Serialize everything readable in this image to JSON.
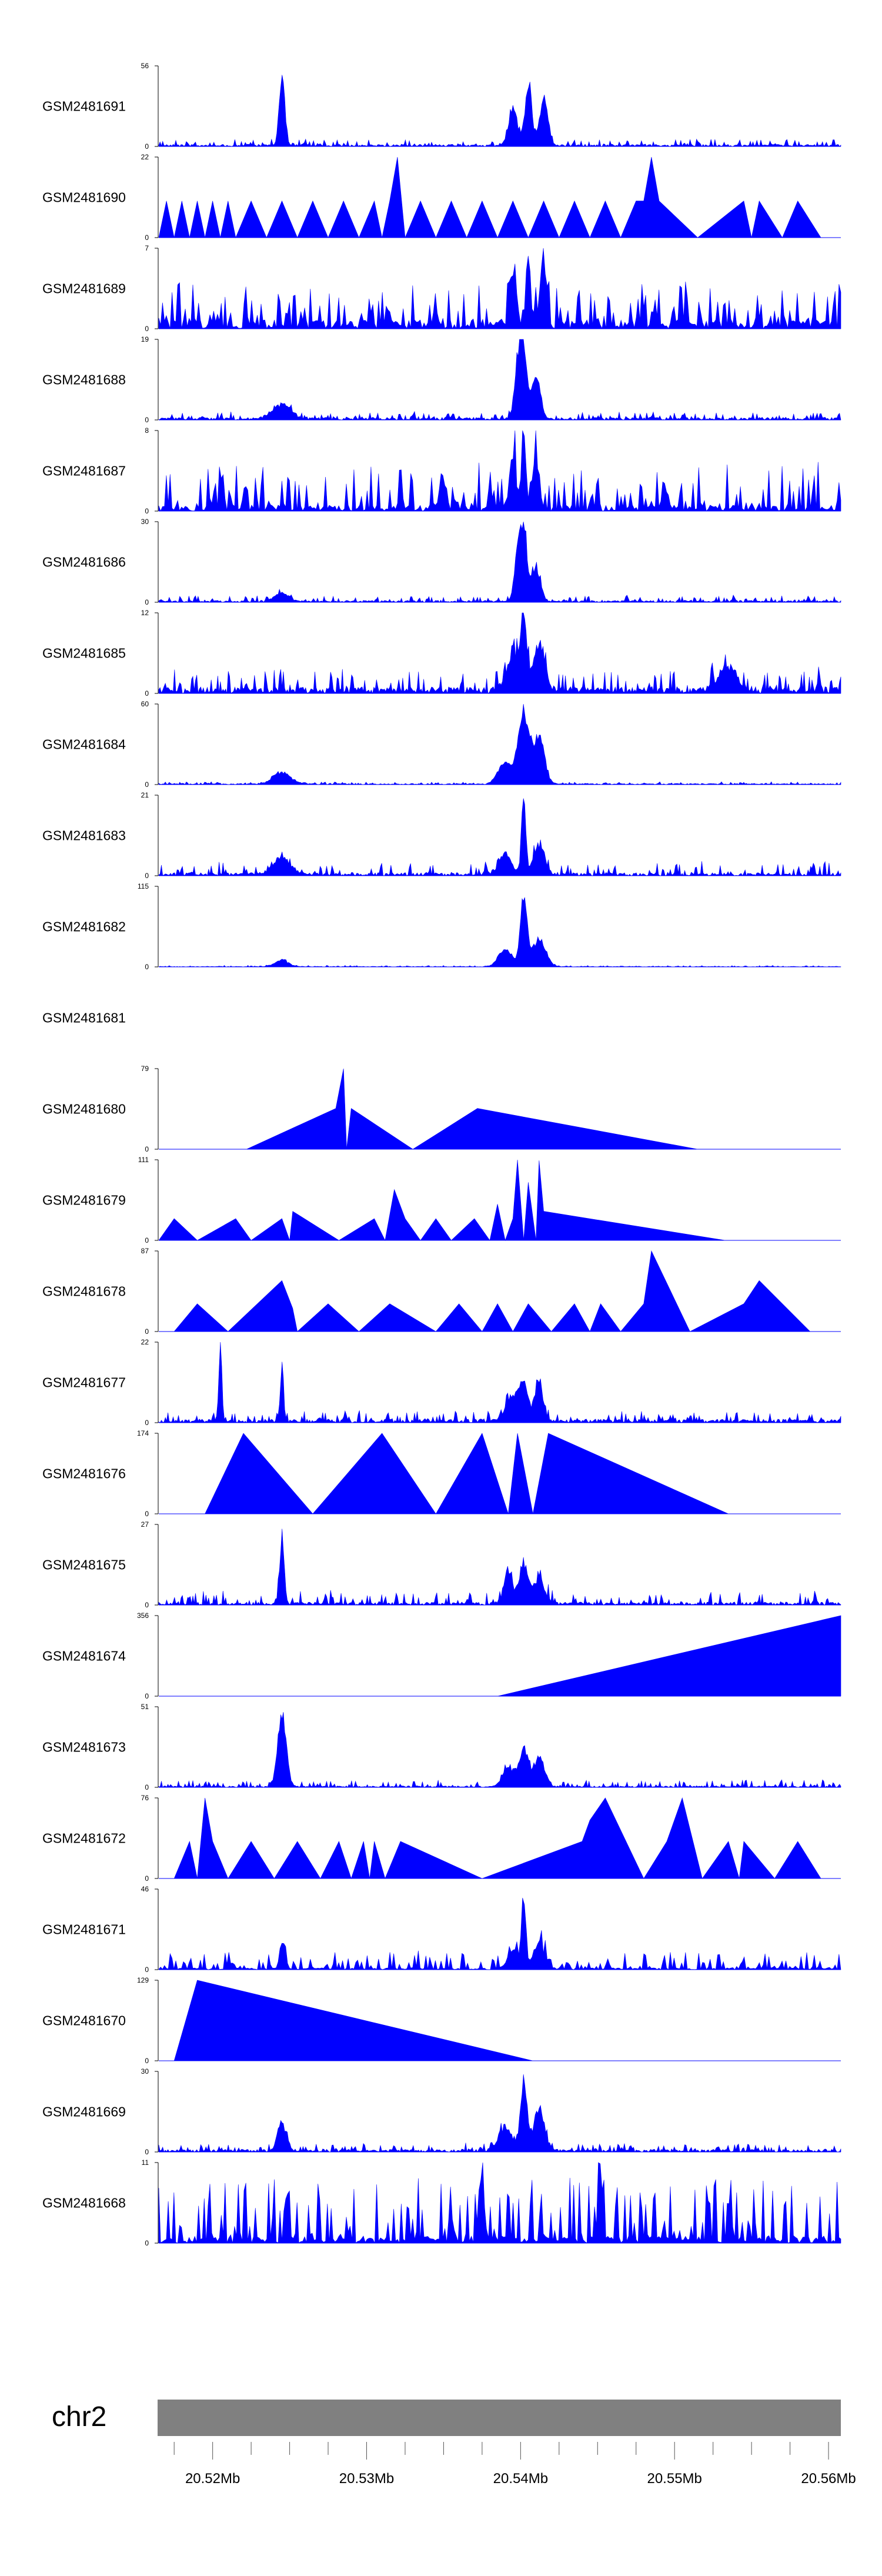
{
  "chart_data": {
    "type": "area",
    "title": "",
    "xlabel": "",
    "ylabel": "",
    "chromosome": "chr2",
    "xlim": [
      20.5165,
      20.5608
    ],
    "x_tick_labels": [
      {
        "pos": 20.52,
        "label": "20.52Mb"
      },
      {
        "pos": 20.53,
        "label": "20.53Mb"
      },
      {
        "pos": 20.54,
        "label": "20.54Mb"
      },
      {
        "pos": 20.55,
        "label": "20.55Mb"
      },
      {
        "pos": 20.56,
        "label": "20.56Mb"
      }
    ],
    "tracks": [
      {
        "name": "GSM2481691",
        "ymax": "56",
        "ymin": "0",
        "style": "dense",
        "base": 1.5,
        "noise": 4,
        "peaks": [
          [
            20.5245,
            56,
            0.00025
          ],
          [
            20.5395,
            28,
            0.0004
          ],
          [
            20.5405,
            50,
            0.0003
          ],
          [
            20.5415,
            35,
            0.0004
          ]
        ]
      },
      {
        "name": "GSM2481690",
        "ymax": "22",
        "ymin": "0",
        "style": "sparse",
        "base": 0,
        "noise": 10,
        "peaks": [
          [
            20.5115,
            0,
            0.0001
          ]
        ],
        "pts": [
          [
            20.5165,
            0
          ],
          [
            20.517,
            10
          ],
          [
            20.5175,
            0
          ],
          [
            20.518,
            10
          ],
          [
            20.5185,
            0
          ],
          [
            20.519,
            10
          ],
          [
            20.5195,
            0
          ],
          [
            20.52,
            10
          ],
          [
            20.5205,
            0
          ],
          [
            20.521,
            10
          ],
          [
            20.5215,
            0
          ],
          [
            20.5225,
            10
          ],
          [
            20.5235,
            0
          ],
          [
            20.5245,
            10
          ],
          [
            20.5255,
            0
          ],
          [
            20.5265,
            10
          ],
          [
            20.5275,
            0
          ],
          [
            20.5285,
            10
          ],
          [
            20.5295,
            0
          ],
          [
            20.5305,
            10
          ],
          [
            20.531,
            0
          ],
          [
            20.5315,
            10
          ],
          [
            20.532,
            22
          ],
          [
            20.5325,
            0
          ],
          [
            20.5335,
            10
          ],
          [
            20.5345,
            0
          ],
          [
            20.5355,
            10
          ],
          [
            20.5365,
            0
          ],
          [
            20.5375,
            10
          ],
          [
            20.5385,
            0
          ],
          [
            20.5395,
            10
          ],
          [
            20.5405,
            0
          ],
          [
            20.5415,
            10
          ],
          [
            20.5425,
            0
          ],
          [
            20.5435,
            10
          ],
          [
            20.5445,
            0
          ],
          [
            20.5455,
            10
          ],
          [
            20.5465,
            0
          ],
          [
            20.5475,
            10
          ],
          [
            20.548,
            10
          ],
          [
            20.5485,
            22
          ],
          [
            20.549,
            10
          ],
          [
            20.5515,
            0
          ],
          [
            20.5545,
            10
          ],
          [
            20.555,
            0
          ],
          [
            20.5555,
            10
          ],
          [
            20.557,
            0
          ],
          [
            20.558,
            10
          ],
          [
            20.5595,
            0
          ]
        ]
      },
      {
        "name": "GSM2481689",
        "ymax": "7",
        "ymin": "0",
        "style": "spiky",
        "base": 0.8,
        "noise": 3.5,
        "peaks": [
          [
            20.5395,
            5,
            0.0003
          ],
          [
            20.5405,
            7,
            0.0002
          ],
          [
            20.5415,
            6,
            0.0003
          ]
        ]
      },
      {
        "name": "GSM2481688",
        "ymax": "19",
        "ymin": "0",
        "style": "dense",
        "base": 0.6,
        "noise": 1.5,
        "peaks": [
          [
            20.5245,
            4,
            0.0008
          ],
          [
            20.5398,
            14,
            0.0003
          ],
          [
            20.5402,
            19,
            0.0003
          ],
          [
            20.541,
            12,
            0.0004
          ]
        ]
      },
      {
        "name": "GSM2481687",
        "ymax": "8",
        "ymin": "0",
        "style": "spiky",
        "base": 0.6,
        "noise": 4.5,
        "peaks": [
          [
            20.5395,
            6,
            0.0003
          ],
          [
            20.5402,
            8,
            0.0002
          ],
          [
            20.541,
            6,
            0.0003
          ]
        ]
      },
      {
        "name": "GSM2481686",
        "ymax": "30",
        "ymin": "0",
        "style": "dense",
        "base": 0.7,
        "noise": 2,
        "peaks": [
          [
            20.5245,
            4,
            0.0006
          ],
          [
            20.5398,
            20,
            0.0003
          ],
          [
            20.5402,
            30,
            0.0003
          ],
          [
            20.541,
            15,
            0.0004
          ]
        ]
      },
      {
        "name": "GSM2481685",
        "ymax": "12",
        "ymin": "0",
        "style": "dense",
        "base": 1,
        "noise": 3,
        "peaks": [
          [
            20.5395,
            6,
            0.0006
          ],
          [
            20.5402,
            12,
            0.0003
          ],
          [
            20.5412,
            8,
            0.0005
          ],
          [
            20.5535,
            4,
            0.0008
          ]
        ]
      },
      {
        "name": "GSM2481684",
        "ymax": "60",
        "ymin": "0",
        "style": "dense",
        "base": 0.8,
        "noise": 1.5,
        "peaks": [
          [
            20.5245,
            10,
            0.0008
          ],
          [
            20.539,
            20,
            0.0006
          ],
          [
            20.5402,
            60,
            0.0005
          ],
          [
            20.5412,
            40,
            0.0005
          ]
        ]
      },
      {
        "name": "GSM2481683",
        "ymax": "21",
        "ymin": "0",
        "style": "dense",
        "base": 0.8,
        "noise": 3,
        "peaks": [
          [
            20.5245,
            5,
            0.0008
          ],
          [
            20.539,
            6,
            0.0006
          ],
          [
            20.5402,
            21,
            0.0002
          ],
          [
            20.5412,
            9,
            0.0005
          ]
        ]
      },
      {
        "name": "GSM2481682",
        "ymax": "115",
        "ymin": "0",
        "style": "dense",
        "base": 0.8,
        "noise": 1.5,
        "peaks": [
          [
            20.5245,
            10,
            0.0006
          ],
          [
            20.539,
            30,
            0.0006
          ],
          [
            20.5402,
            115,
            0.0003
          ],
          [
            20.5412,
            45,
            0.0006
          ]
        ]
      },
      {
        "name": "GSM2481681",
        "ymax": "",
        "ymin": "",
        "style": "empty",
        "base": 0,
        "noise": 0,
        "peaks": []
      },
      {
        "name": "GSM2481680",
        "ymax": "79",
        "ymin": "0",
        "style": "sparse",
        "base": 0,
        "noise": 0,
        "peaks": [],
        "pts": [
          [
            20.5222,
            0
          ],
          [
            20.528,
            40
          ],
          [
            20.5285,
            79
          ],
          [
            20.5287,
            0
          ],
          [
            20.529,
            40
          ],
          [
            20.533,
            0
          ],
          [
            20.5372,
            40
          ],
          [
            20.5515,
            0
          ]
        ]
      },
      {
        "name": "GSM2481679",
        "ymax": "111",
        "ymin": "0",
        "style": "sparse",
        "base": 0,
        "noise": 0,
        "peaks": [],
        "pts": [
          [
            20.5165,
            0
          ],
          [
            20.5175,
            30
          ],
          [
            20.519,
            0
          ],
          [
            20.5215,
            30
          ],
          [
            20.5225,
            0
          ],
          [
            20.5245,
            30
          ],
          [
            20.525,
            0
          ],
          [
            20.5252,
            40
          ],
          [
            20.5282,
            0
          ],
          [
            20.5305,
            30
          ],
          [
            20.5312,
            0
          ],
          [
            20.5318,
            70
          ],
          [
            20.5325,
            30
          ],
          [
            20.5335,
            0
          ],
          [
            20.5345,
            30
          ],
          [
            20.5355,
            0
          ],
          [
            20.537,
            30
          ],
          [
            20.538,
            0
          ],
          [
            20.5385,
            50
          ],
          [
            20.539,
            0
          ],
          [
            20.5395,
            30
          ],
          [
            20.5398,
            111
          ],
          [
            20.5402,
            0
          ],
          [
            20.5405,
            80
          ],
          [
            20.541,
            0
          ],
          [
            20.5412,
            110
          ],
          [
            20.5415,
            40
          ],
          [
            20.5533,
            0
          ]
        ]
      },
      {
        "name": "GSM2481678",
        "ymax": "87",
        "ymin": "0",
        "style": "sparse",
        "base": 0,
        "noise": 0,
        "peaks": [],
        "pts": [
          [
            20.5175,
            0
          ],
          [
            20.519,
            30
          ],
          [
            20.521,
            0
          ],
          [
            20.5245,
            55
          ],
          [
            20.5252,
            25
          ],
          [
            20.5255,
            0
          ],
          [
            20.5275,
            30
          ],
          [
            20.5295,
            0
          ],
          [
            20.5315,
            30
          ],
          [
            20.5345,
            0
          ],
          [
            20.536,
            30
          ],
          [
            20.5375,
            0
          ],
          [
            20.5385,
            30
          ],
          [
            20.5395,
            0
          ],
          [
            20.5405,
            30
          ],
          [
            20.542,
            0
          ],
          [
            20.5435,
            30
          ],
          [
            20.5445,
            0
          ],
          [
            20.5452,
            30
          ],
          [
            20.5465,
            0
          ],
          [
            20.548,
            30
          ],
          [
            20.5485,
            87
          ],
          [
            20.551,
            0
          ],
          [
            20.5545,
            30
          ],
          [
            20.5555,
            55
          ],
          [
            20.5588,
            0
          ]
        ]
      },
      {
        "name": "GSM2481677",
        "ymax": "22",
        "ymin": "0",
        "style": "dense",
        "base": 1,
        "noise": 2.5,
        "peaks": [
          [
            20.5205,
            22,
            0.00015
          ],
          [
            20.5245,
            18,
            0.00015
          ],
          [
            20.5395,
            8,
            0.0006
          ],
          [
            20.5402,
            10,
            0.0004
          ],
          [
            20.5412,
            12,
            0.0004
          ]
        ]
      },
      {
        "name": "GSM2481676",
        "ymax": "174",
        "ymin": "0",
        "style": "sparse",
        "base": 0,
        "noise": 0,
        "peaks": [],
        "pts": [
          [
            20.5195,
            0
          ],
          [
            20.522,
            174
          ],
          [
            20.5265,
            0
          ],
          [
            20.531,
            174
          ],
          [
            20.5345,
            0
          ],
          [
            20.5375,
            174
          ],
          [
            20.5392,
            0
          ],
          [
            20.5398,
            174
          ],
          [
            20.5408,
            0
          ],
          [
            20.5418,
            174
          ],
          [
            20.5535,
            0
          ]
        ]
      },
      {
        "name": "GSM2481675",
        "ymax": "27",
        "ymin": "0",
        "style": "dense",
        "base": 1,
        "noise": 4,
        "peaks": [
          [
            20.5245,
            27,
            0.0002
          ],
          [
            20.5392,
            12,
            0.0004
          ],
          [
            20.5402,
            15,
            0.0004
          ],
          [
            20.5412,
            10,
            0.0005
          ]
        ]
      },
      {
        "name": "GSM2481674",
        "ymax": "356",
        "ymin": "0",
        "style": "sparse",
        "base": 0,
        "noise": 0,
        "peaks": [],
        "pts": [
          [
            20.5385,
            0
          ],
          [
            20.5608,
            356
          ],
          [
            20.5608,
            0
          ]
        ]
      },
      {
        "name": "GSM2481673",
        "ymax": "51",
        "ymin": "0",
        "style": "dense",
        "base": 1,
        "noise": 4,
        "peaks": [
          [
            20.5245,
            51,
            0.0004
          ],
          [
            20.5392,
            15,
            0.0005
          ],
          [
            20.5402,
            28,
            0.0004
          ],
          [
            20.5412,
            20,
            0.0005
          ]
        ]
      },
      {
        "name": "GSM2481672",
        "ymax": "76",
        "ymin": "0",
        "style": "sparse",
        "base": 0,
        "noise": 0,
        "peaks": [],
        "pts": [
          [
            20.5175,
            0
          ],
          [
            20.5185,
            35
          ],
          [
            20.519,
            0
          ],
          [
            20.5195,
            76
          ],
          [
            20.52,
            35
          ],
          [
            20.521,
            0
          ],
          [
            20.5225,
            35
          ],
          [
            20.524,
            0
          ],
          [
            20.5255,
            35
          ],
          [
            20.527,
            0
          ],
          [
            20.5282,
            35
          ],
          [
            20.529,
            0
          ],
          [
            20.5298,
            35
          ],
          [
            20.5302,
            0
          ],
          [
            20.5305,
            35
          ],
          [
            20.5312,
            0
          ],
          [
            20.5322,
            35
          ],
          [
            20.5375,
            0
          ],
          [
            20.544,
            35
          ],
          [
            20.5445,
            55
          ],
          [
            20.5455,
            76
          ],
          [
            20.548,
            0
          ],
          [
            20.5495,
            35
          ],
          [
            20.5505,
            76
          ],
          [
            20.5518,
            0
          ],
          [
            20.5535,
            35
          ],
          [
            20.5542,
            0
          ],
          [
            20.5545,
            35
          ],
          [
            20.5565,
            0
          ],
          [
            20.558,
            35
          ],
          [
            20.5595,
            0
          ]
        ]
      },
      {
        "name": "GSM2481671",
        "ymax": "46",
        "ymin": "0",
        "style": "spiky",
        "base": 1,
        "noise": 10,
        "peaks": [
          [
            20.5245,
            18,
            0.0002
          ],
          [
            20.5395,
            12,
            0.0005
          ],
          [
            20.5402,
            46,
            0.0002
          ],
          [
            20.5412,
            15,
            0.0005
          ]
        ]
      },
      {
        "name": "GSM2481670",
        "ymax": "129",
        "ymin": "0",
        "style": "sparse",
        "base": 0,
        "noise": 0,
        "peaks": [],
        "pts": [
          [
            20.5175,
            0
          ],
          [
            20.519,
            129
          ],
          [
            20.5408,
            0
          ]
        ]
      },
      {
        "name": "GSM2481669",
        "ymax": "30",
        "ymin": "0",
        "style": "dense",
        "base": 1,
        "noise": 2.5,
        "peaks": [
          [
            20.5245,
            12,
            0.0004
          ],
          [
            20.539,
            10,
            0.0006
          ],
          [
            20.5402,
            30,
            0.0003
          ],
          [
            20.5412,
            18,
            0.0005
          ]
        ]
      },
      {
        "name": "GSM2481668",
        "ymax": "11",
        "ymin": "0",
        "style": "spiky",
        "base": 1,
        "noise": 8,
        "peaks": [
          [
            20.5375,
            10,
            0.0002
          ],
          [
            20.5452,
            11,
            0.0002
          ]
        ]
      }
    ]
  }
}
